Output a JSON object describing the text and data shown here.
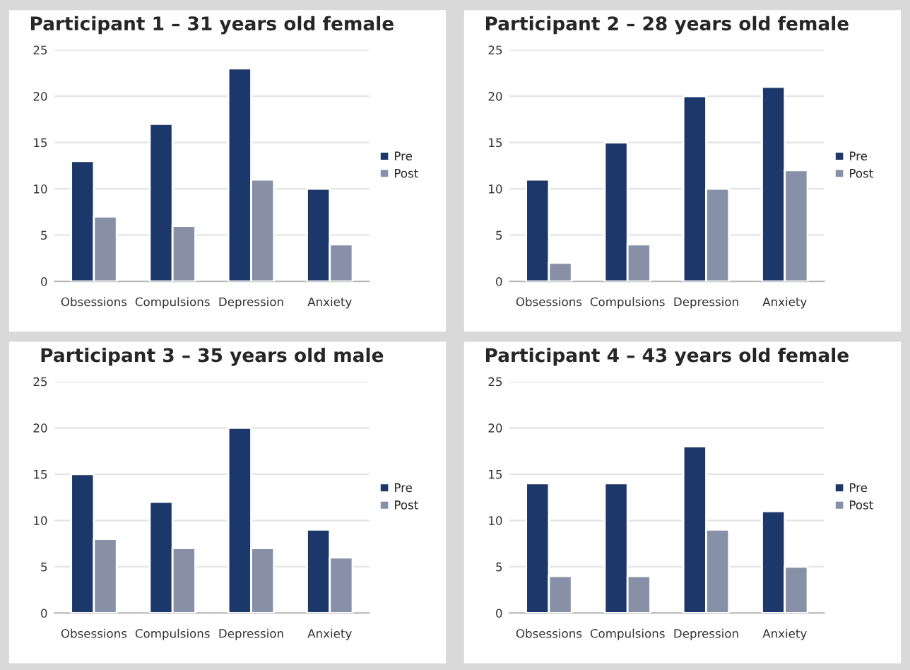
{
  "chart_data": [
    {
      "type": "bar",
      "title": "Participant 1 – 31 years old female",
      "categories": [
        "Obsessions",
        "Compulsions",
        "Depression",
        "Anxiety"
      ],
      "series": [
        {
          "name": "Pre",
          "color": "#1c3769",
          "values": [
            13,
            17,
            23,
            10
          ]
        },
        {
          "name": "Post",
          "color": "#8790a6",
          "values": [
            7,
            6,
            11,
            4
          ]
        }
      ],
      "ylim": [
        0,
        25
      ],
      "yticks": [
        0,
        5,
        10,
        15,
        20,
        25
      ],
      "grid": "y",
      "legend": "right"
    },
    {
      "type": "bar",
      "title": "Participant 2 – 28 years old female",
      "categories": [
        "Obsessions",
        "Compulsions",
        "Depression",
        "Anxiety"
      ],
      "series": [
        {
          "name": "Pre",
          "color": "#1c3769",
          "values": [
            11,
            15,
            20,
            21
          ]
        },
        {
          "name": "Post",
          "color": "#8790a6",
          "values": [
            2,
            4,
            10,
            12
          ]
        }
      ],
      "ylim": [
        0,
        25
      ],
      "yticks": [
        0,
        5,
        10,
        15,
        20,
        25
      ],
      "grid": "y",
      "legend": "right"
    },
    {
      "type": "bar",
      "title": "Participant 3 – 35 years old male",
      "categories": [
        "Obsessions",
        "Compulsions",
        "Depression",
        "Anxiety"
      ],
      "series": [
        {
          "name": "Pre",
          "color": "#1c3769",
          "values": [
            15,
            12,
            20,
            9
          ]
        },
        {
          "name": "Post",
          "color": "#8790a6",
          "values": [
            8,
            7,
            7,
            6
          ]
        }
      ],
      "ylim": [
        0,
        25
      ],
      "yticks": [
        0,
        5,
        10,
        15,
        20,
        25
      ],
      "grid": "y",
      "legend": "right"
    },
    {
      "type": "bar",
      "title": "Participant 4 – 43 years old female",
      "categories": [
        "Obsessions",
        "Compulsions",
        "Depression",
        "Anxiety"
      ],
      "series": [
        {
          "name": "Pre",
          "color": "#1c3769",
          "values": [
            14,
            14,
            18,
            11
          ]
        },
        {
          "name": "Post",
          "color": "#8790a6",
          "values": [
            4,
            4,
            9,
            5
          ]
        }
      ],
      "ylim": [
        0,
        25
      ],
      "yticks": [
        0,
        5,
        10,
        15,
        20,
        25
      ],
      "grid": "y",
      "legend": "right"
    }
  ]
}
